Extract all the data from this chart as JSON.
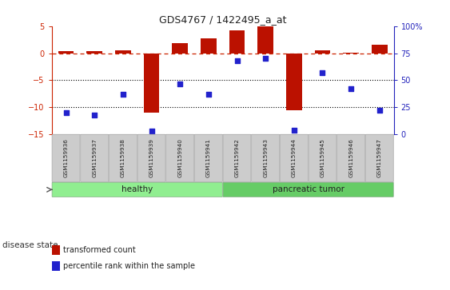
{
  "title": "GDS4767 / 1422495_a_at",
  "samples": [
    "GSM1159936",
    "GSM1159937",
    "GSM1159938",
    "GSM1159939",
    "GSM1159940",
    "GSM1159941",
    "GSM1159942",
    "GSM1159943",
    "GSM1159944",
    "GSM1159945",
    "GSM1159946",
    "GSM1159947"
  ],
  "transformed_count": [
    0.4,
    0.4,
    0.5,
    -11.0,
    1.8,
    2.8,
    4.2,
    5.0,
    -10.5,
    0.5,
    0.1,
    1.6
  ],
  "percentile_rank": [
    20,
    18,
    37,
    3,
    47,
    37,
    68,
    70,
    4,
    57,
    42,
    22
  ],
  "ylim_left": [
    -15,
    5
  ],
  "ylim_right": [
    0,
    100
  ],
  "yticks_left": [
    5,
    0,
    -5,
    -10,
    -15
  ],
  "yticks_right": [
    100,
    75,
    50,
    25,
    0
  ],
  "groups": [
    {
      "label": "healthy",
      "start": 0,
      "end": 5,
      "color": "#90EE90"
    },
    {
      "label": "pancreatic tumor",
      "start": 6,
      "end": 11,
      "color": "#66CC66"
    }
  ],
  "disease_state_label": "disease state",
  "legend_red": "transformed count",
  "legend_blue": "percentile rank within the sample",
  "bar_color": "#BB1100",
  "dot_color": "#2222CC",
  "bg_color": "#FFFFFF",
  "plot_bg": "#FFFFFF",
  "left_axis_color": "#CC2200",
  "right_axis_color": "#2222BB",
  "hline_color": "#CC2200",
  "grid_color": "#000000",
  "sample_box_color": "#CCCCCC",
  "sample_box_edge": "#AAAAAA",
  "group_edge": "#88AA88"
}
